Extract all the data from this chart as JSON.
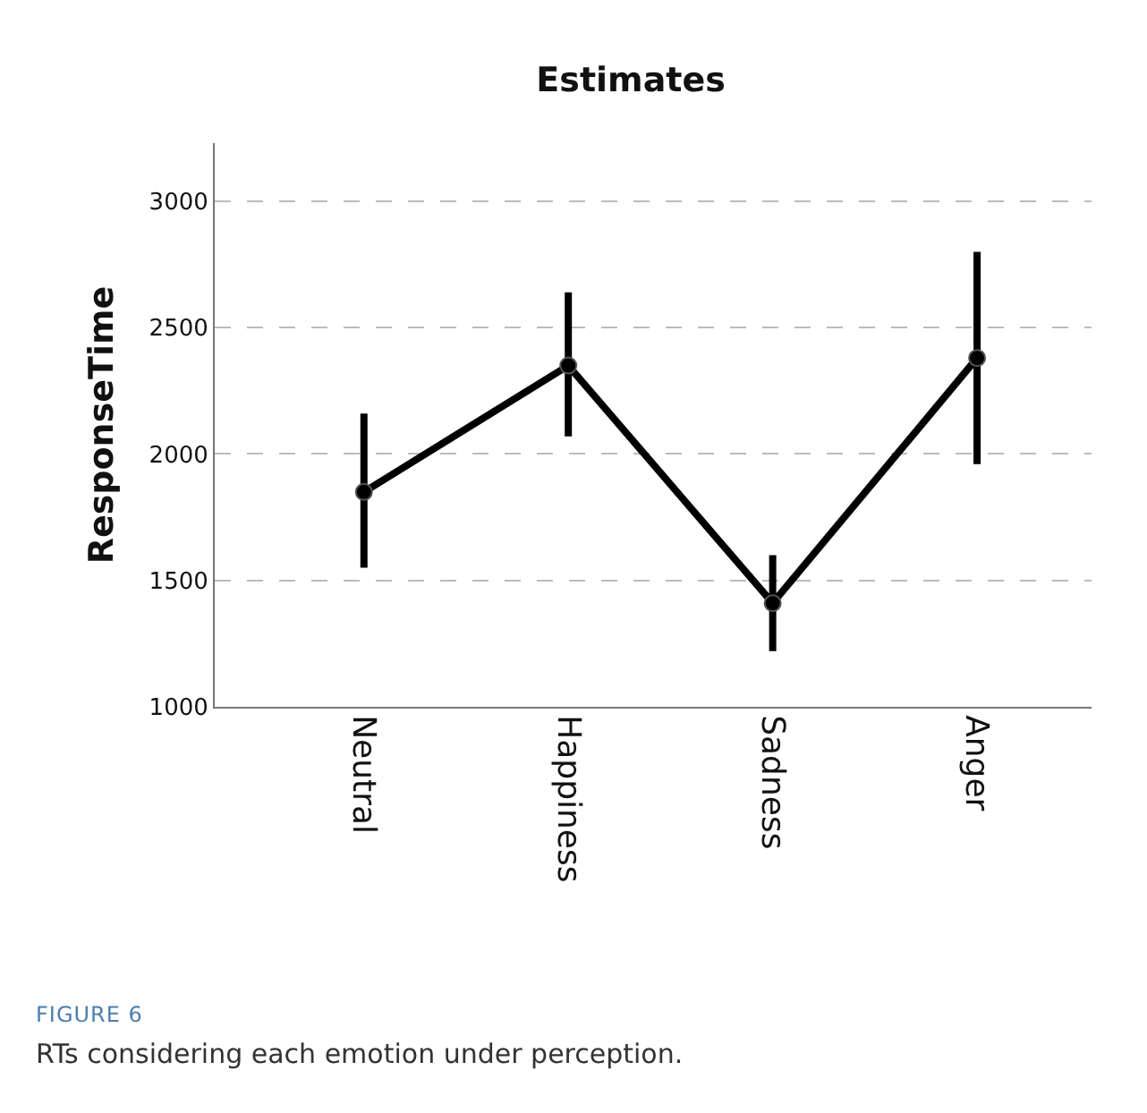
{
  "chart_data": {
    "type": "line",
    "title": "Estimates",
    "ylabel": "ResponseTime",
    "categories": [
      "Neutral",
      "Happiness",
      "Sadness",
      "Anger"
    ],
    "series": [
      {
        "color": "#000000",
        "values": [
          1850,
          2350,
          1410,
          2380
        ],
        "errors": [
          [
            1550,
            2160
          ],
          [
            2070,
            2640
          ],
          [
            1220,
            1600
          ],
          [
            1960,
            2800
          ]
        ]
      }
    ],
    "ylim": [
      1000,
      3230
    ],
    "yticks": [
      1000,
      1500,
      2000,
      2500,
      3000
    ],
    "grid": "y",
    "marker": "circle",
    "line_style": "solid",
    "annotations": [
      "FIGURE 6",
      "RTs considering each emotion under perception."
    ]
  }
}
